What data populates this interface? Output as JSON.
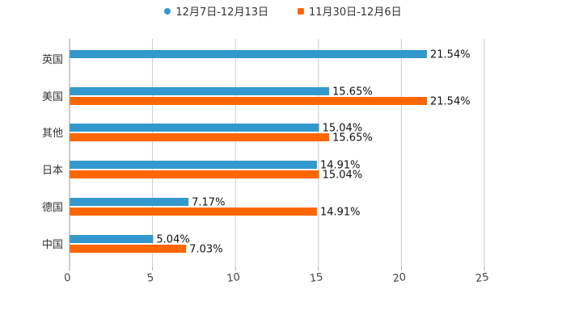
{
  "chart_data": {
    "type": "bar",
    "orientation": "horizontal",
    "categories": [
      "英国",
      "美国",
      "其他",
      "日本",
      "德国",
      "中国"
    ],
    "series": [
      {
        "name": "12月7日-12月13日",
        "color": "#3399cc",
        "values": [
          21.54,
          15.65,
          15.04,
          14.91,
          7.17,
          5.04
        ],
        "labels": [
          "21.54%",
          "15.65%",
          "15.04%",
          "14.91%",
          "7.17%",
          "5.04%"
        ]
      },
      {
        "name": "11月30日-12月6日",
        "color": "#ff6600",
        "values": [
          null,
          21.54,
          15.65,
          15.04,
          14.91,
          7.03
        ],
        "labels": [
          "",
          "21.54%",
          "15.65%",
          "15.04%",
          "14.91%",
          "7.03%"
        ]
      }
    ],
    "xlim": [
      0,
      25
    ],
    "xticks": [
      "0",
      "5",
      "10",
      "15",
      "20",
      "25"
    ],
    "legend_position": "top-center",
    "grid": true
  }
}
